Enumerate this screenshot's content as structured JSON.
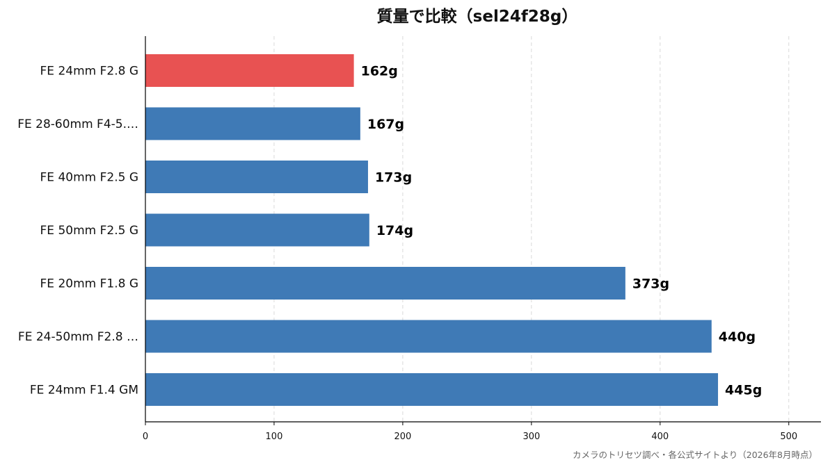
{
  "chart_data": {
    "type": "bar",
    "orientation": "horizontal",
    "title": "質量で比較（sel24f28g）",
    "categories": [
      "FE 24mm F2.8 G",
      "FE 28-60mm F4-5.…",
      "FE 40mm F2.5 G",
      "FE 50mm F2.5 G",
      "FE 20mm F1.8 G",
      "FE 24-50mm F2.8 …",
      "FE 24mm F1.4 GM"
    ],
    "values": [
      162,
      167,
      173,
      174,
      373,
      440,
      445
    ],
    "value_labels": [
      "162g",
      "167g",
      "173g",
      "174g",
      "373g",
      "440g",
      "445g"
    ],
    "highlight_index": 0,
    "xlim": [
      0,
      525
    ],
    "xticks": [
      0,
      100,
      200,
      300,
      400,
      500
    ],
    "grid": "vertical dashed",
    "colors": {
      "highlight": "#e85252",
      "default": "#3f7ab6"
    },
    "source": "カメラのトリセツ調べ・各公式サイトより（2026年8月時点）"
  }
}
